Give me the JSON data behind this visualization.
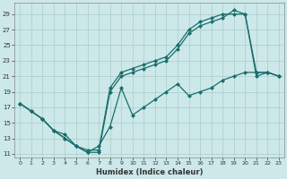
{
  "xlabel": "Humidex (Indice chaleur)",
  "bg_color": "#cce8e8",
  "grid_color": "#aacccc",
  "line_color": "#1a6e6e",
  "xlim": [
    -0.5,
    23.5
  ],
  "ylim": [
    10.5,
    30.5
  ],
  "xticks": [
    0,
    1,
    2,
    3,
    4,
    5,
    6,
    7,
    8,
    9,
    10,
    11,
    12,
    13,
    14,
    15,
    16,
    17,
    18,
    19,
    20,
    21,
    22,
    23
  ],
  "yticks": [
    11,
    13,
    15,
    17,
    19,
    21,
    23,
    25,
    27,
    29
  ],
  "line1_x": [
    0,
    1,
    2,
    3,
    4,
    5,
    6,
    7,
    8,
    9,
    10,
    11,
    12,
    13,
    14,
    15,
    16,
    17,
    18,
    19,
    20,
    21,
    22,
    23
  ],
  "line1_y": [
    17.5,
    16.5,
    15.5,
    14.0,
    13.0,
    12.0,
    11.2,
    11.2,
    19.0,
    21.0,
    21.5,
    22.0,
    22.5,
    23.0,
    24.5,
    26.5,
    27.5,
    28.0,
    28.5,
    29.5,
    29.0,
    21.0,
    21.5,
    21.0
  ],
  "line2_x": [
    0,
    1,
    2,
    3,
    4,
    5,
    6,
    7,
    8,
    9,
    10,
    11,
    12,
    13,
    14,
    15,
    16,
    17,
    18,
    19,
    20,
    21,
    22,
    23
  ],
  "line2_y": [
    17.5,
    16.5,
    15.5,
    14.0,
    13.0,
    12.0,
    11.5,
    11.5,
    19.5,
    21.5,
    22.0,
    22.5,
    23.0,
    23.5,
    25.0,
    27.0,
    28.0,
    28.5,
    29.0,
    29.0,
    29.0,
    21.5,
    21.5,
    21.0
  ],
  "line3_x": [
    0,
    1,
    2,
    3,
    4,
    5,
    6,
    7,
    8,
    9,
    10,
    11,
    12,
    13,
    14,
    15,
    16,
    17,
    18,
    19,
    20,
    21,
    22,
    23
  ],
  "line3_y": [
    17.5,
    16.5,
    15.5,
    14.0,
    13.5,
    12.0,
    11.2,
    12.0,
    14.5,
    19.5,
    16.0,
    17.0,
    18.0,
    19.0,
    20.0,
    18.5,
    19.0,
    19.5,
    20.5,
    21.0,
    21.5,
    21.5,
    21.5,
    21.0
  ]
}
